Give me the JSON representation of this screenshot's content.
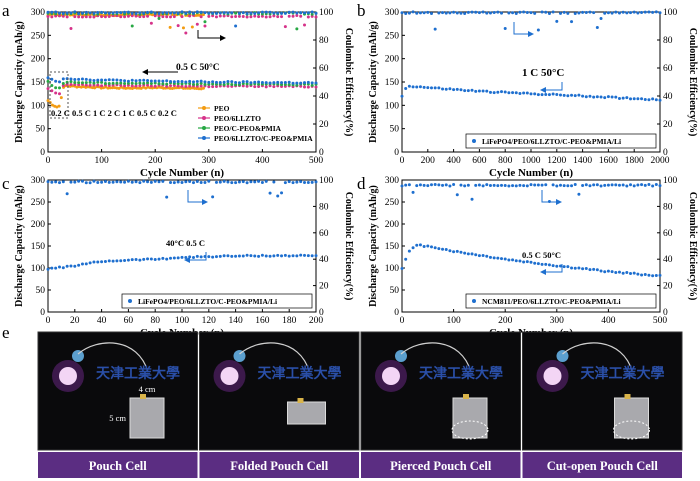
{
  "colors": {
    "orange": "#f39c12",
    "magenta": "#d6338a",
    "green": "#27a844",
    "blue": "#1e6fcf",
    "gray": "#8a8a8a",
    "purple_bar": "#5b2d82"
  },
  "chart_data": [
    {
      "panel": "a",
      "type": "scatter",
      "xlabel": "Cycle Number (n)",
      "ylabel": "Discharge Capacity (mAh/g)",
      "y2label": "Coulombic Efficiency(%)",
      "xlim": [
        0,
        500
      ],
      "ylim": [
        0,
        300
      ],
      "y2lim": [
        0,
        100
      ],
      "xticks": [
        "0",
        "100",
        "200",
        "300",
        "400",
        "500"
      ],
      "yticks": [
        "0",
        "50",
        "100",
        "150",
        "200",
        "250",
        "300"
      ],
      "y2ticks": [
        "0",
        "20",
        "40",
        "60",
        "80",
        "100"
      ],
      "annotations": [
        "0.5 C   50°C",
        "0.2 C 0.5 C 1 C 2 C 1 C 0.5 C 0.2 C"
      ],
      "legend": [
        "PEO",
        "PEO/6LLZTO",
        "PEO/C-PEO&PMIA",
        "PEO/6LLZTO/C-PEO&PMIA"
      ],
      "series": [
        {
          "name": "PEO",
          "color": "orange",
          "end": 290,
          "cap": [
            [
              0,
              110
            ],
            [
              10,
              100
            ],
            [
              20,
              95
            ],
            [
              30,
              142
            ],
            [
              60,
              140
            ],
            [
              100,
              138
            ],
            [
              150,
              137
            ],
            [
              200,
              138
            ],
            [
              250,
              137
            ],
            [
              290,
              136
            ]
          ],
          "ce_base": 98,
          "ce_end": 290
        },
        {
          "name": "PEO/6LLZTO",
          "color": "magenta",
          "end": 500,
          "cap": [
            [
              0,
              135
            ],
            [
              10,
              130
            ],
            [
              20,
              120
            ],
            [
              30,
              145
            ],
            [
              60,
              144
            ],
            [
              100,
              143
            ],
            [
              200,
              142
            ],
            [
              300,
              141
            ],
            [
              400,
              141
            ],
            [
              500,
              140
            ]
          ],
          "ce_base": 97,
          "ce_end": 500
        },
        {
          "name": "PEO/C-PEO&PMIA",
          "color": "green",
          "end": 500,
          "cap": [
            [
              0,
              150
            ],
            [
              10,
              140
            ],
            [
              20,
              135
            ],
            [
              30,
              150
            ],
            [
              60,
              149
            ],
            [
              100,
              148
            ],
            [
              200,
              147
            ],
            [
              300,
              146
            ],
            [
              400,
              145
            ],
            [
              500,
              144
            ]
          ],
          "ce_base": 99,
          "ce_end": 500
        },
        {
          "name": "PEO/6LLZTO/C-PEO&PMIA",
          "color": "blue",
          "end": 500,
          "cap": [
            [
              0,
              160
            ],
            [
              10,
              155
            ],
            [
              20,
              150
            ],
            [
              30,
              158
            ],
            [
              60,
              156
            ],
            [
              100,
              154
            ],
            [
              200,
              152
            ],
            [
              300,
              150
            ],
            [
              400,
              149
            ],
            [
              500,
              148
            ]
          ],
          "ce_base": 99.5,
          "ce_end": 500
        }
      ]
    },
    {
      "panel": "b",
      "type": "scatter",
      "xlabel": "Cycle Number (n)",
      "ylabel": "Discharge Capacity (mAh/g)",
      "y2label": "Coulombic Efficiency(%)",
      "xlim": [
        0,
        2000
      ],
      "ylim": [
        0,
        300
      ],
      "y2lim": [
        0,
        100
      ],
      "xticks": [
        "0",
        "200",
        "400",
        "600",
        "800",
        "1000",
        "1200",
        "1400",
        "1600",
        "1800",
        "2000"
      ],
      "yticks": [
        "0",
        "50",
        "100",
        "150",
        "200",
        "250",
        "300"
      ],
      "y2ticks": [
        "0",
        "20",
        "40",
        "60",
        "80",
        "100"
      ],
      "annotations": [
        "1 C   50°C"
      ],
      "legend": [
        "LiFePO4/PEO/6LLZTO/C-PEO&PMIA/Li"
      ],
      "series": [
        {
          "name": "LiFePO4/PEO/6LLZTO/C-PEO&PMIA/Li",
          "color": "blue",
          "end": 2000,
          "cap": [
            [
              0,
              120
            ],
            [
              40,
              142
            ],
            [
              200,
              138
            ],
            [
              600,
              130
            ],
            [
              1000,
              125
            ],
            [
              1400,
              120
            ],
            [
              2000,
              112
            ]
          ],
          "ce_base": 99.5,
          "ce_end": 2000
        }
      ]
    },
    {
      "panel": "c",
      "type": "scatter",
      "xlabel": "Cycle Number (n)",
      "ylabel": "Discharge Capacity (mAh/g)",
      "y2label": "Coulombic Efficiency(%)",
      "xlim": [
        0,
        200
      ],
      "ylim": [
        0,
        300
      ],
      "y2lim": [
        0,
        100
      ],
      "xticks": [
        "0",
        "20",
        "40",
        "60",
        "80",
        "100",
        "120",
        "140",
        "160",
        "180",
        "200"
      ],
      "yticks": [
        "0",
        "50",
        "100",
        "150",
        "200",
        "250",
        "300"
      ],
      "y2ticks": [
        "0",
        "20",
        "40",
        "60",
        "80",
        "100"
      ],
      "annotations": [
        "40°C   0.5 C"
      ],
      "legend": [
        "LiFePO4/PEO/6LLZTO/C-PEO&PMIA/Li"
      ],
      "series": [
        {
          "name": "LiFePO4/PEO/6LLZTO/C-PEO&PMIA/Li",
          "color": "blue",
          "end": 200,
          "cap": [
            [
              0,
              98
            ],
            [
              20,
              105
            ],
            [
              40,
              115
            ],
            [
              60,
              118
            ],
            [
              80,
              120
            ],
            [
              100,
              124
            ],
            [
              120,
              126
            ],
            [
              160,
              128
            ],
            [
              200,
              128
            ]
          ],
          "ce_base": 98.5,
          "ce_end": 200
        }
      ]
    },
    {
      "panel": "d",
      "type": "scatter",
      "xlabel": "Cycle Number (n)",
      "ylabel": "Discharge Capacity (mAh/g)",
      "y2label": "Coulombic Efficiency(%)",
      "xlim": [
        0,
        500
      ],
      "ylim": [
        0,
        300
      ],
      "y2lim": [
        0,
        100
      ],
      "xticks": [
        "0",
        "100",
        "200",
        "300",
        "400",
        "500"
      ],
      "yticks": [
        "0",
        "50",
        "100",
        "150",
        "200",
        "250",
        "300"
      ],
      "y2ticks": [
        "0",
        "20",
        "40",
        "60",
        "80",
        "100"
      ],
      "annotations": [
        "0.5 C   50°C"
      ],
      "legend": [
        "NCM811/PEO/6LLZTO/C-PEO&PMIA/Li"
      ],
      "series": [
        {
          "name": "NCM811/PEO/6LLZTO/C-PEO&PMIA/Li",
          "color": "blue",
          "end": 500,
          "cap": [
            [
              0,
              100
            ],
            [
              15,
              140
            ],
            [
              30,
              152
            ],
            [
              60,
              148
            ],
            [
              100,
              138
            ],
            [
              200,
              120
            ],
            [
              300,
              105
            ],
            [
              400,
              92
            ],
            [
              500,
              82
            ]
          ],
          "ce_base": 96,
          "ce_end": 500
        }
      ]
    }
  ],
  "photos": {
    "title": "e",
    "brand_text": "天津工業大學",
    "dim_width": "4 cm",
    "dim_height": "5 cm",
    "labels": [
      "Pouch Cell",
      "Folded Pouch Cell",
      "Pierced Pouch Cell",
      "Cut-open Pouch Cell"
    ]
  }
}
